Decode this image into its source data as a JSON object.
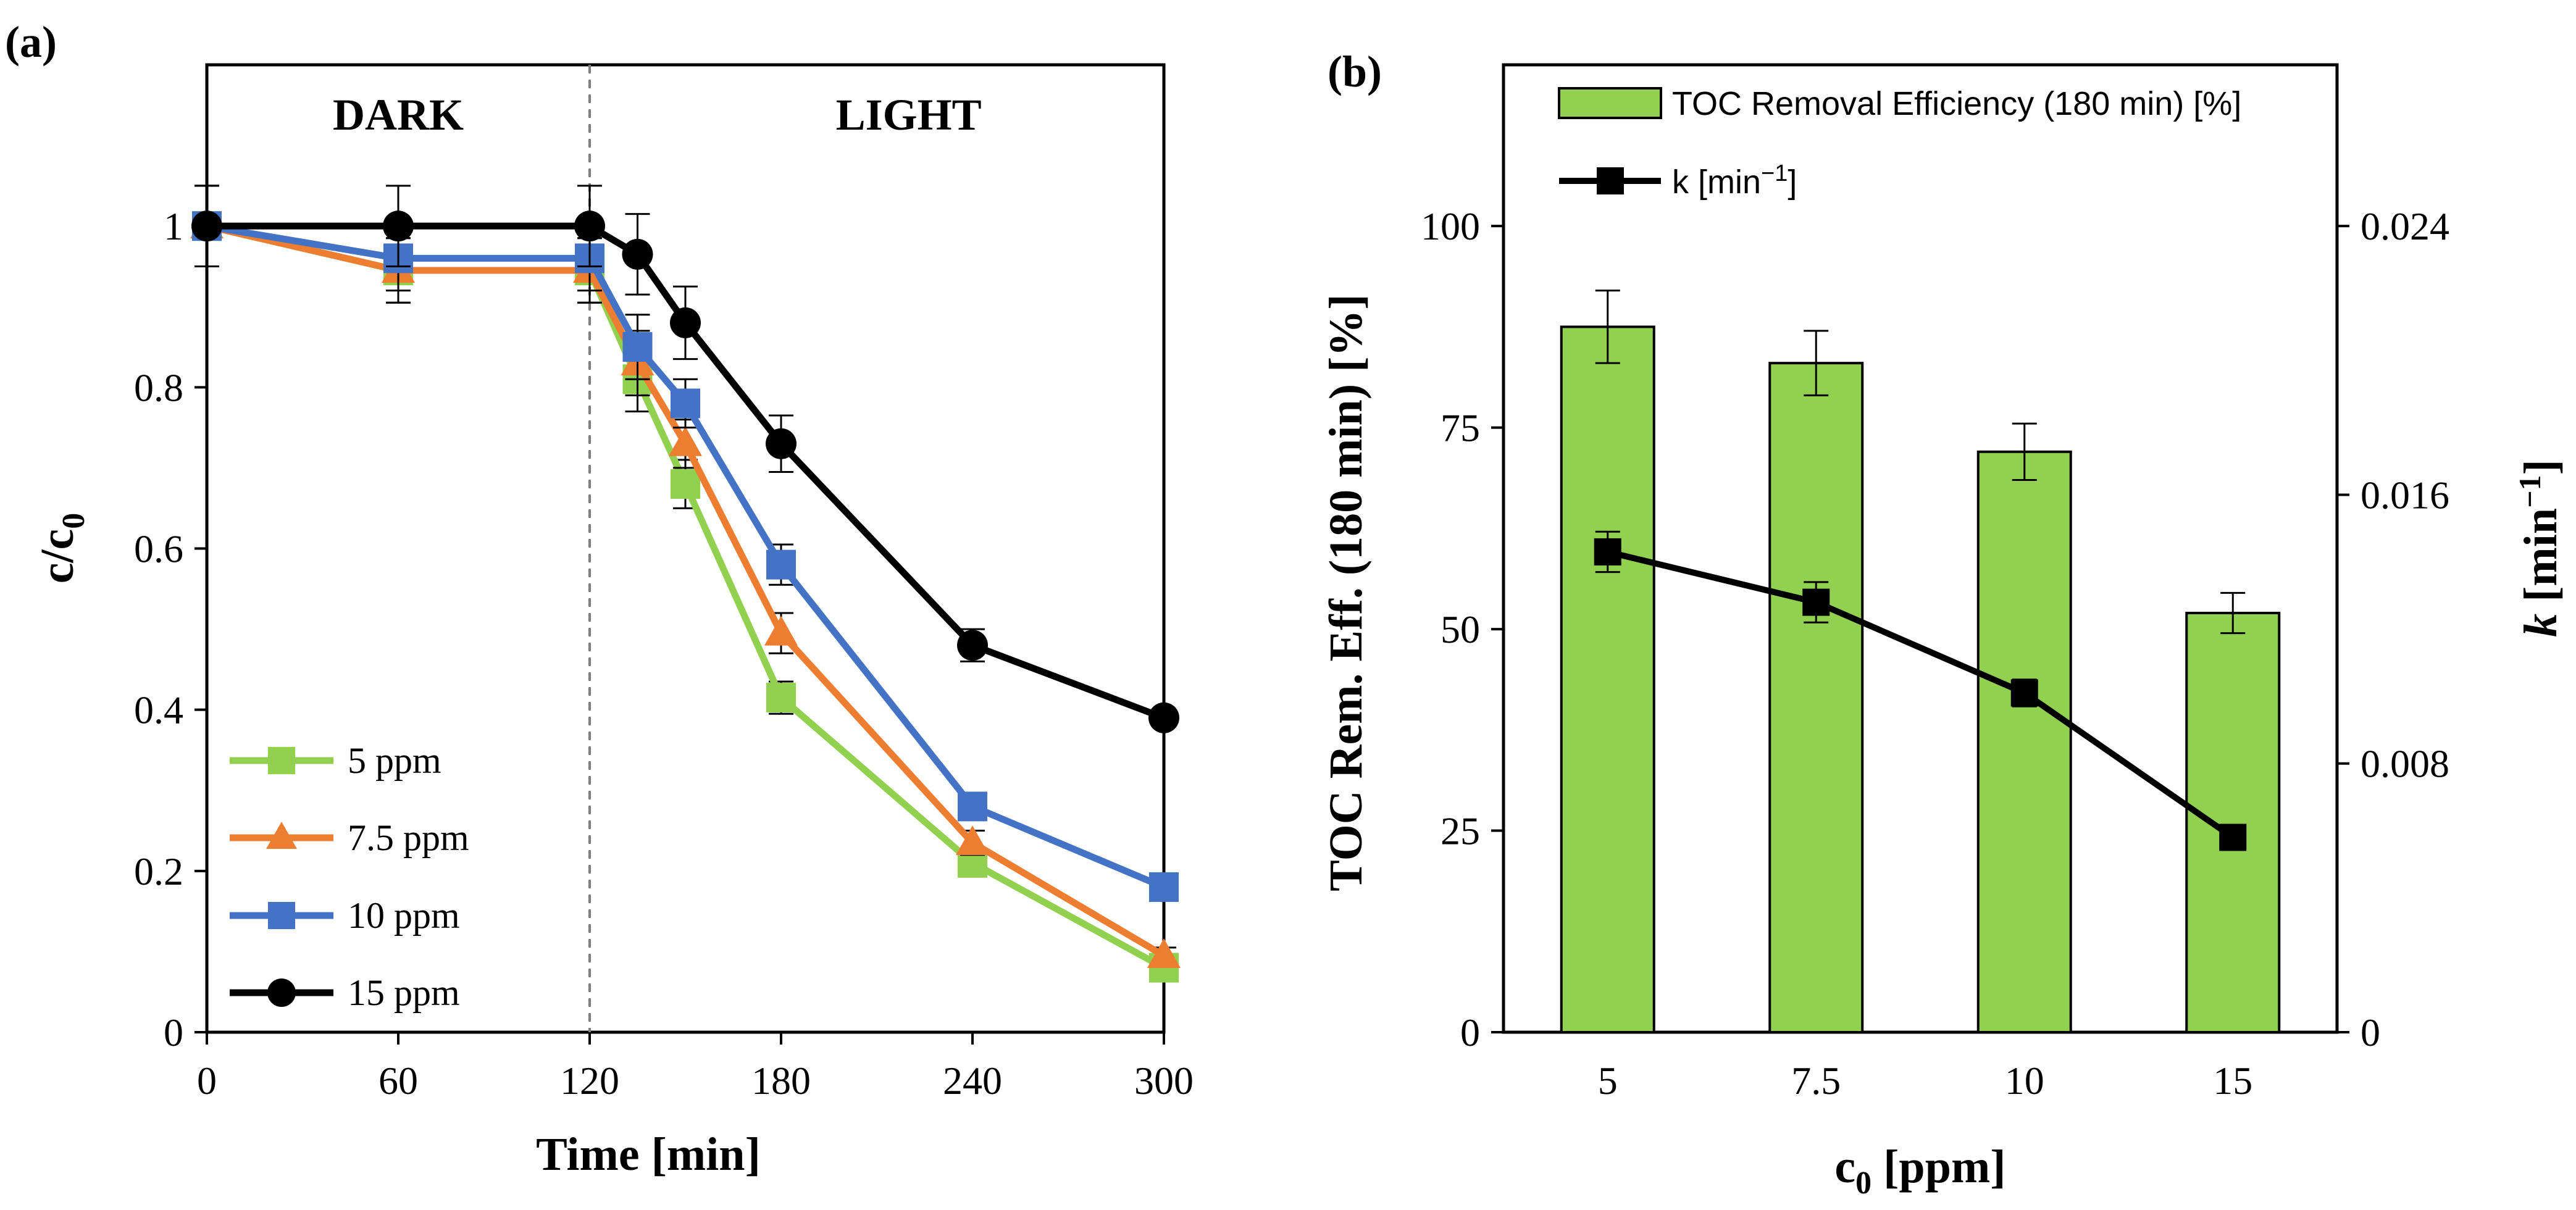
{
  "chart_data": [
    {
      "panel_label": "(a)",
      "type": "line",
      "xlabel": "Time [min]",
      "ylabel_main": "c/c",
      "ylabel_sub": "0",
      "xlim": [
        0,
        300
      ],
      "ylim": [
        0,
        1.2
      ],
      "xticks": [
        "0",
        "60",
        "120",
        "180",
        "240",
        "300"
      ],
      "xtick_values": [
        0,
        60,
        120,
        180,
        240,
        300
      ],
      "yticks": [
        "0",
        "0.2",
        "0.4",
        "0.6",
        "0.8",
        "1"
      ],
      "ytick_values": [
        0,
        0.2,
        0.4,
        0.6,
        0.8,
        1.0
      ],
      "divider_x": 120,
      "regions": [
        {
          "label": "DARK",
          "x": 60
        },
        {
          "label": "LIGHT",
          "x": 220
        }
      ],
      "legend_position": "bottom-left",
      "series": [
        {
          "name": "5 ppm",
          "color": "#92d050",
          "marker": "square",
          "x": [
            0,
            60,
            120,
            135,
            150,
            180,
            240,
            300
          ],
          "y": [
            1.0,
            0.945,
            0.945,
            0.81,
            0.68,
            0.415,
            0.21,
            0.08
          ],
          "err": [
            0.05,
            0.04,
            0.04,
            0.04,
            0.03,
            0.02,
            0.015,
            0.01
          ]
        },
        {
          "name": "7.5 ppm",
          "color": "#ed7d31",
          "marker": "triangle",
          "x": [
            0,
            60,
            120,
            135,
            150,
            180,
            240,
            300
          ],
          "y": [
            1.0,
            0.945,
            0.945,
            0.83,
            0.73,
            0.495,
            0.235,
            0.095
          ],
          "err": [
            0.05,
            0.04,
            0.04,
            0.04,
            0.03,
            0.025,
            0.015,
            0.01
          ]
        },
        {
          "name": "10 ppm",
          "color": "#4472c4",
          "marker": "square",
          "x": [
            0,
            60,
            120,
            135,
            150,
            180,
            240,
            300
          ],
          "y": [
            1.0,
            0.96,
            0.96,
            0.85,
            0.78,
            0.58,
            0.28,
            0.18
          ],
          "err": [
            0.05,
            0.04,
            0.04,
            0.04,
            0.03,
            0.025,
            0.015,
            0.01
          ]
        },
        {
          "name": "15 ppm",
          "color": "#000000",
          "marker": "circle",
          "x": [
            0,
            60,
            120,
            135,
            150,
            180,
            240,
            300
          ],
          "y": [
            1.0,
            1.0,
            1.0,
            0.965,
            0.88,
            0.73,
            0.48,
            0.39
          ],
          "err": [
            0.05,
            0.05,
            0.05,
            0.05,
            0.045,
            0.035,
            0.02,
            0.01
          ]
        }
      ]
    },
    {
      "panel_label": "(b)",
      "type": "bar",
      "xlabel_main": "c",
      "xlabel_sub": "0",
      "xlabel_rest": " [ppm]",
      "categories": [
        "5",
        "7.5",
        "10",
        "15"
      ],
      "ylabel_left": "TOC Rem. Eff. (180 min) [%]",
      "ylim_left": [
        0,
        120
      ],
      "yticks_left": [
        "0",
        "25",
        "50",
        "75",
        "100"
      ],
      "ytick_values_left": [
        0,
        25,
        50,
        75,
        100
      ],
      "ylabel_right_italic": "k",
      "ylabel_right_rest": " [min",
      "ylabel_right_sup": "−1",
      "ylabel_right_close": "]",
      "ylim_right": [
        0,
        0.0288
      ],
      "yticks_right": [
        "0",
        "0.008",
        "0.016",
        "0.024"
      ],
      "ytick_values_right": [
        0,
        0.008,
        0.016,
        0.024
      ],
      "legend_position": "top",
      "series": [
        {
          "name": "TOC Removal Efficiency (180 min) [%]",
          "kind": "bar",
          "axis": "left",
          "color": "#92d050",
          "values": [
            87.5,
            83,
            72,
            52
          ],
          "err": [
            4.5,
            4,
            3.5,
            2.5
          ]
        },
        {
          "name_prefix": "k [min",
          "name_sup": "−1",
          "name_suffix": "]",
          "kind": "line",
          "axis": "right",
          "color": "#000000",
          "marker": "square",
          "values": [
            0.0143,
            0.0128,
            0.0101,
            0.0058
          ],
          "err": [
            0.0006,
            0.0006,
            0.0004,
            0.0002
          ]
        }
      ]
    }
  ]
}
